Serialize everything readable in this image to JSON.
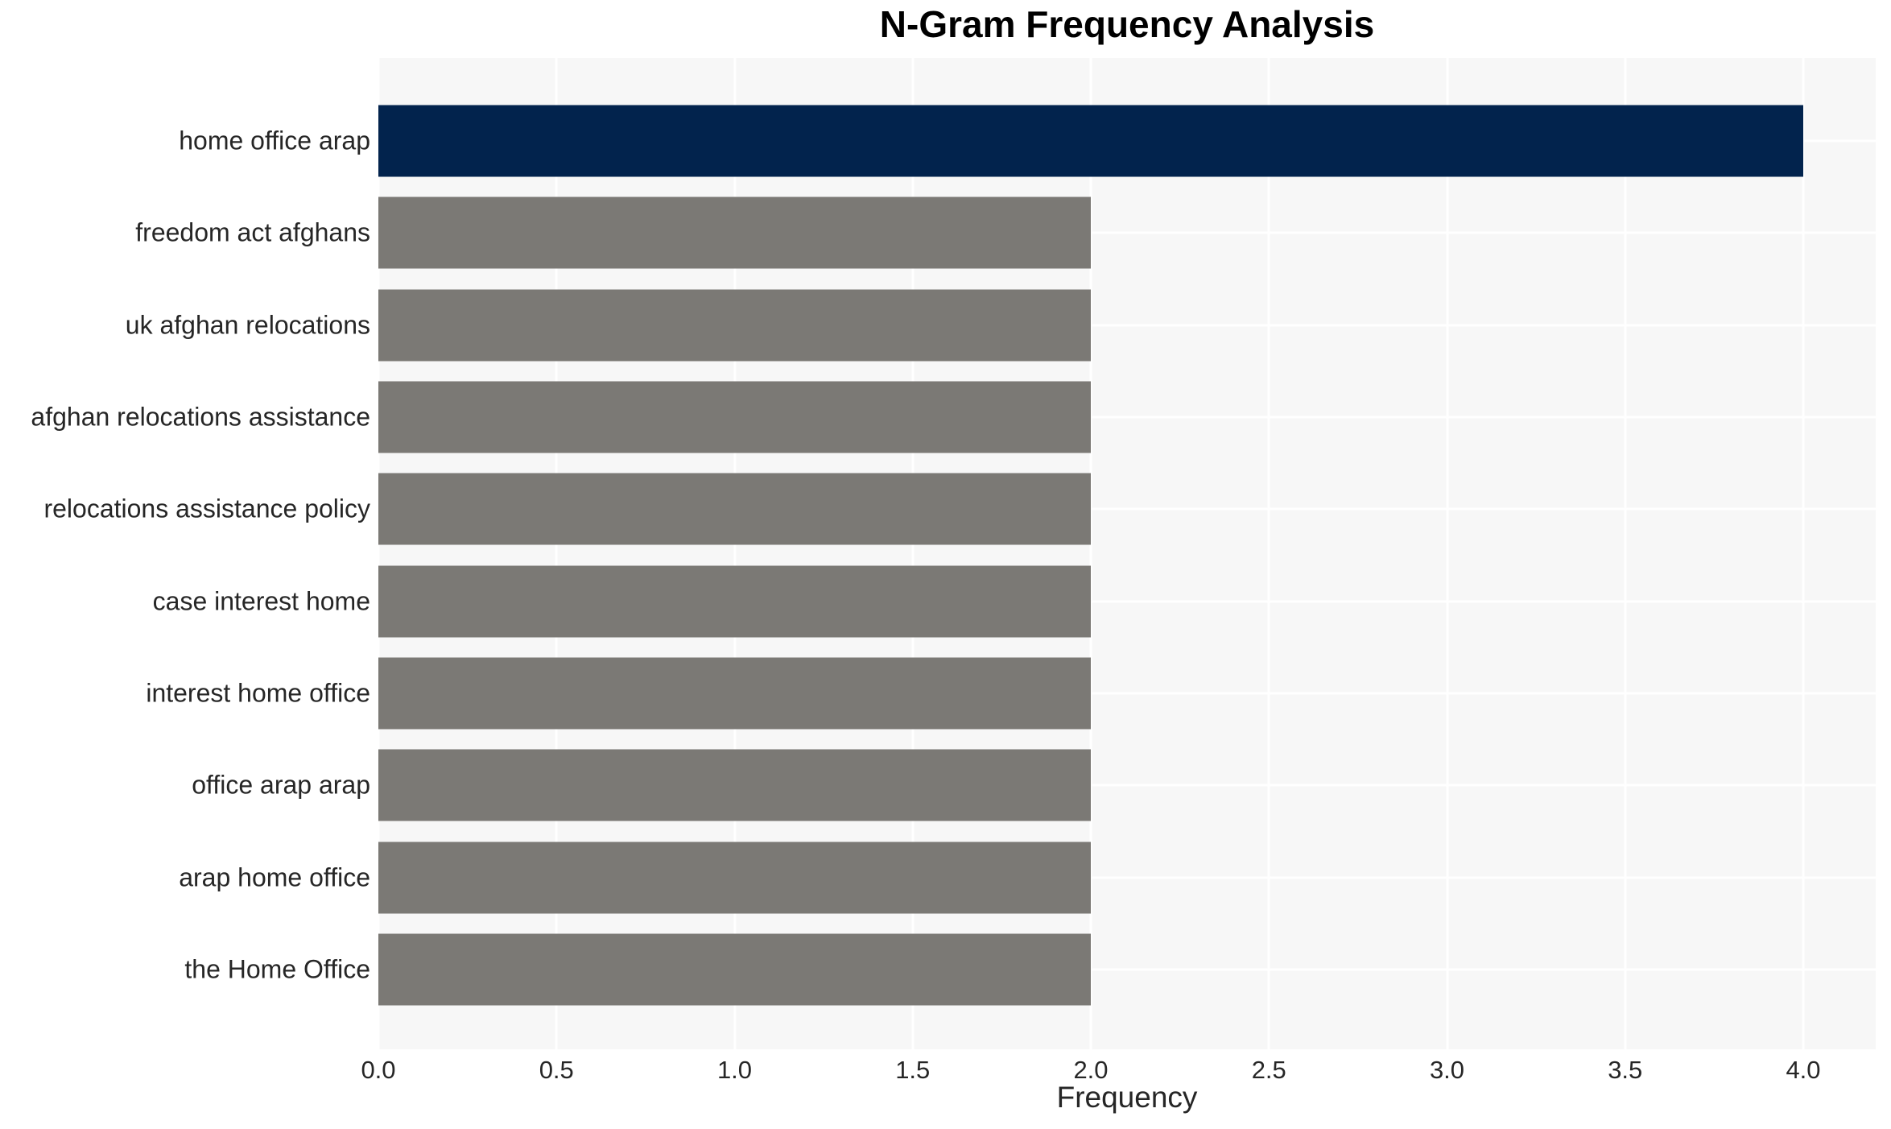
{
  "chart_data": {
    "type": "bar",
    "orientation": "horizontal",
    "title": "N-Gram Frequency Analysis",
    "xlabel": "Frequency",
    "ylabel": "",
    "categories": [
      "home office arap",
      "freedom act afghans",
      "uk afghan relocations",
      "afghan relocations assistance",
      "relocations assistance policy",
      "case interest home",
      "interest home office",
      "office arap arap",
      "arap home office",
      "the Home Office"
    ],
    "values": [
      4,
      2,
      2,
      2,
      2,
      2,
      2,
      2,
      2,
      2
    ],
    "highlight_index": 0,
    "xticks": [
      0.0,
      0.5,
      1.0,
      1.5,
      2.0,
      2.5,
      3.0,
      3.5,
      4.0
    ],
    "xtick_labels": [
      "0.0",
      "0.5",
      "1.0",
      "1.5",
      "2.0",
      "2.5",
      "3.0",
      "3.5",
      "4.0"
    ],
    "xlim": [
      0,
      4.2
    ],
    "grid": true,
    "legend": false,
    "colors": {
      "highlight_bar": "#02234d",
      "bar": "#7b7975",
      "plot_background": "#f7f7f7",
      "grid_line": "#ffffff",
      "tick_text": "#262626",
      "title_text": "#000000"
    }
  }
}
